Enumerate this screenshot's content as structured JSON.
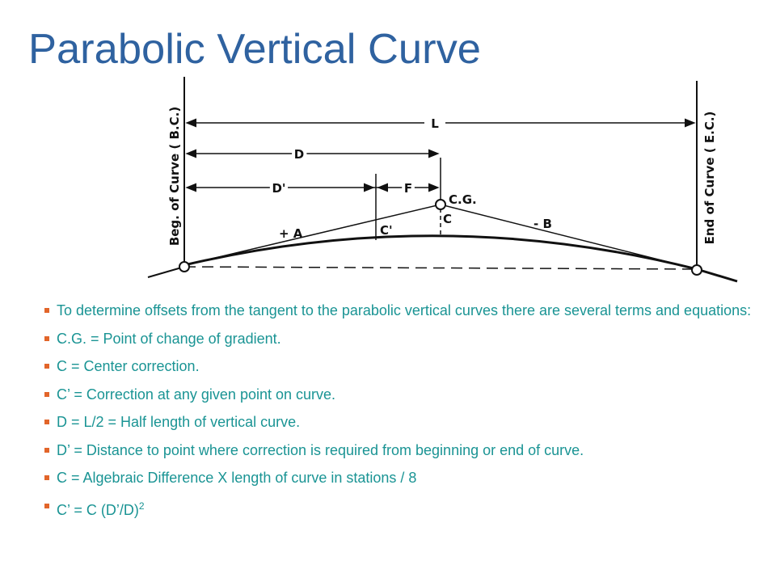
{
  "title": "Parabolic Vertical Curve",
  "diagram": {
    "begin_label": "Beg. of Curve ( B.C.)",
    "end_label": "End of Curve ( E.C.)",
    "L": "L",
    "D": "D",
    "D_prime": "D'",
    "F": "F",
    "CG": "C.G.",
    "C": "C",
    "C_prime": "C'",
    "plus_A": "+ A",
    "minus_B": "- B"
  },
  "bullets": [
    {
      "text": "To determine offsets from the tangent to the parabolic vertical curves there are several terms and equations:"
    },
    {
      "text": "C.G. = Point of change of gradient."
    },
    {
      "text": "C = Center correction."
    },
    {
      "text": "C’ = Correction at any given point on curve."
    },
    {
      "text": "D = L/2 = Half length of vertical curve."
    },
    {
      "text": "D’ = Distance to point where correction is required from beginning or end of curve."
    },
    {
      "text": "C = Algebraic Difference X length of curve in stations / 8"
    },
    {
      "text": "C’ = C (D’/D)",
      "sup": "2"
    }
  ]
}
